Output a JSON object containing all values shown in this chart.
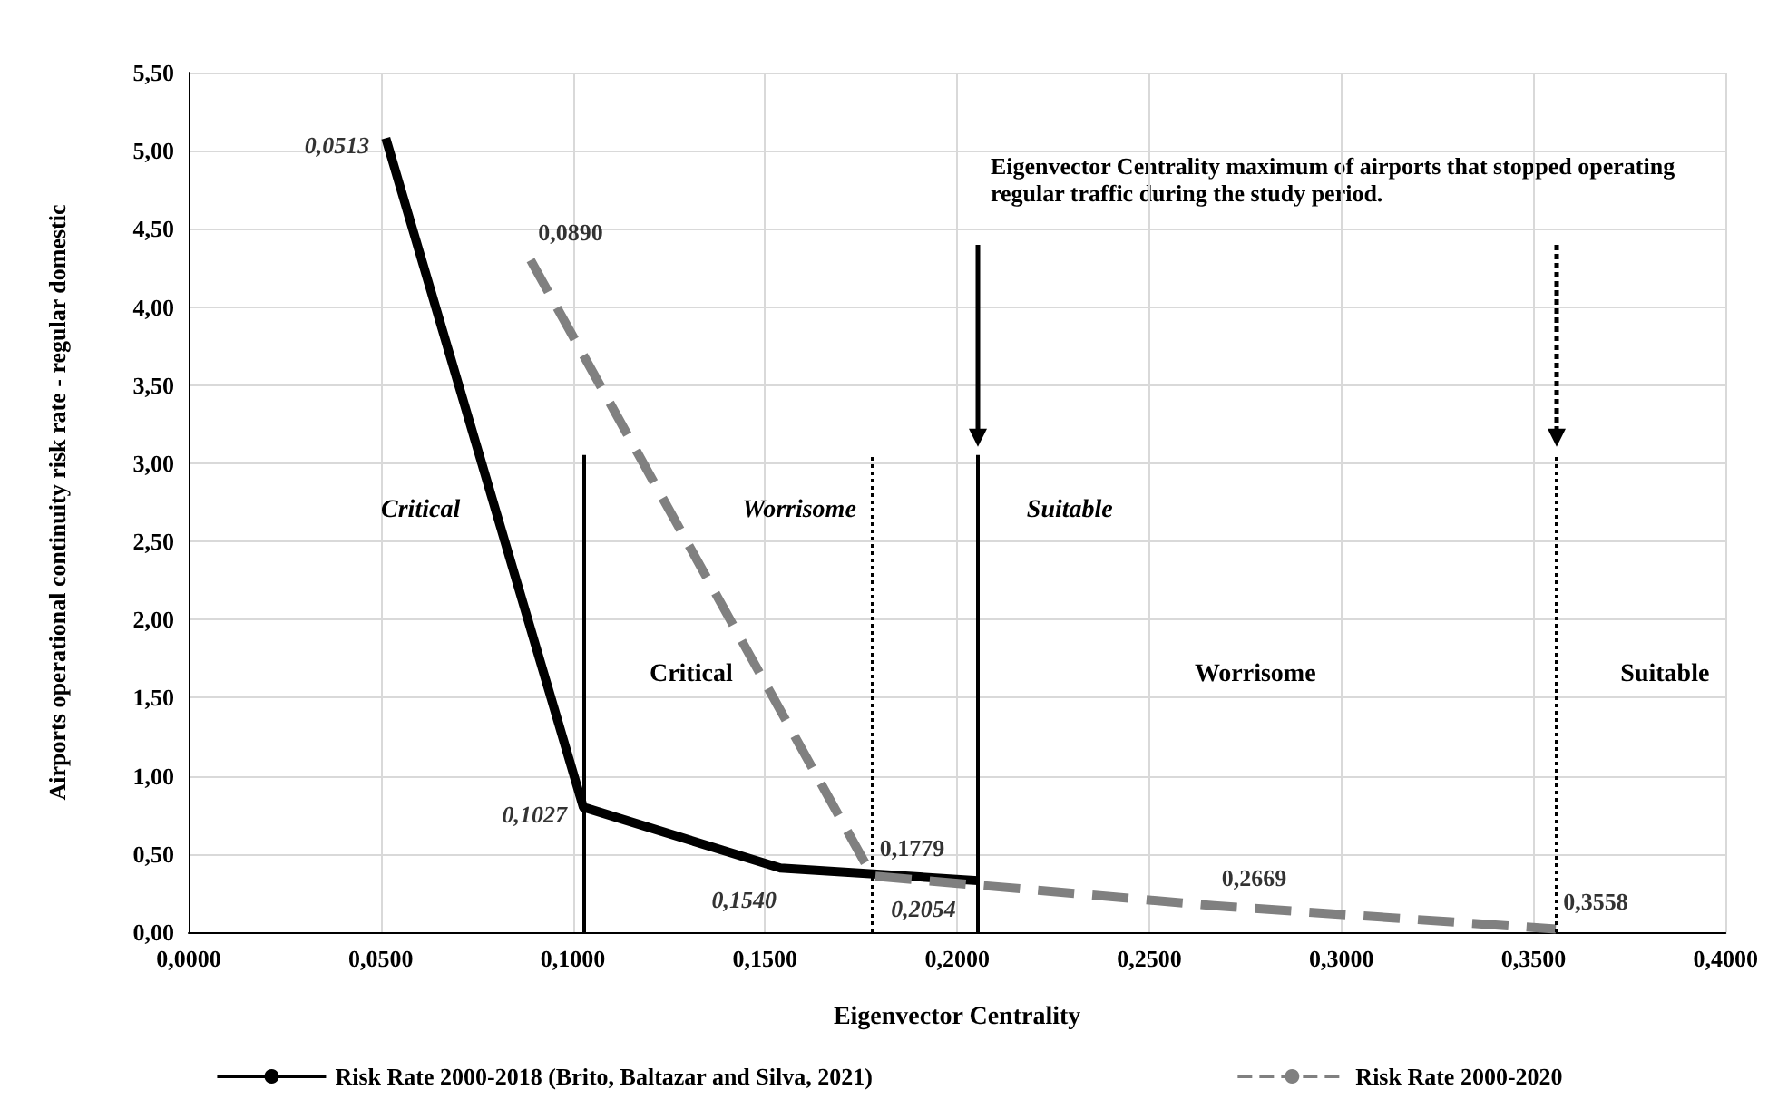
{
  "chart_data": {
    "type": "line",
    "xlabel": "Eigenvector Centrality",
    "ylabel": "Airports operational continuity risk rate - regular domestic",
    "xlim": [
      0,
      0.4
    ],
    "xticks": [
      {
        "value": 0,
        "label": "0,0000"
      },
      {
        "value": 0.05,
        "label": "0,0500"
      },
      {
        "value": 0.1,
        "label": "0,1000"
      },
      {
        "value": 0.15,
        "label": "0,1500"
      },
      {
        "value": 0.2,
        "label": "0,2000"
      },
      {
        "value": 0.25,
        "label": "0,2500"
      },
      {
        "value": 0.3,
        "label": "0,3000"
      },
      {
        "value": 0.35,
        "label": "0,3500"
      },
      {
        "value": 0.4,
        "label": "0,4000"
      }
    ],
    "ylim": [
      0,
      5.5
    ],
    "yticks": [
      {
        "value": 0,
        "label": "0,00"
      },
      {
        "value": 0.5,
        "label": "0,50"
      },
      {
        "value": 1,
        "label": "1,00"
      },
      {
        "value": 1.5,
        "label": "1,50"
      },
      {
        "value": 2,
        "label": "2,00"
      },
      {
        "value": 2.5,
        "label": "2,50"
      },
      {
        "value": 3,
        "label": "3,00"
      },
      {
        "value": 3.5,
        "label": "3,50"
      },
      {
        "value": 4,
        "label": "4,00"
      },
      {
        "value": 4.5,
        "label": "4,50"
      },
      {
        "value": 5,
        "label": "5,00"
      },
      {
        "value": 5.5,
        "label": "5,50"
      }
    ],
    "grid": true,
    "legend": "bottom",
    "marker": "none",
    "series": [
      {
        "name": "Risk Rate 2000-2018 (Brito, Baltazar and Silva, 2021)",
        "color": "#000000",
        "line_style": "solid",
        "x": [
          0.0513,
          0.1027,
          0.154,
          0.2054
        ],
        "values": [
          5.08,
          0.8,
          0.41,
          0.33
        ]
      },
      {
        "name": "Risk Rate 2000-2020",
        "color": "#808080",
        "line_style": "dashed",
        "x": [
          0.089,
          0.1779,
          0.2669,
          0.3558
        ],
        "values": [
          4.3,
          0.36,
          0.17,
          0.02
        ]
      }
    ],
    "ref_lines": [
      {
        "axis": "x",
        "value": 0.1027,
        "color": "#000000",
        "line_style": "solid"
      },
      {
        "axis": "x",
        "value": 0.2054,
        "color": "#000000",
        "line_style": "solid"
      },
      {
        "axis": "x",
        "value": 0.1779,
        "color": "#000000",
        "line_style": "dotted"
      },
      {
        "axis": "x",
        "value": 0.3558,
        "color": "#000000",
        "line_style": "dotted"
      }
    ],
    "annotations": [
      "Eigenvector Centrality maximum of airports that stopped operating regular traffic during the study period.",
      "Critical",
      "Worrisome",
      "Suitable",
      "Critical",
      "Worrisome",
      "Suitable",
      {
        "text": "0,0513",
        "x": 0.0513,
        "y": 5.08
      },
      {
        "text": "0,1027",
        "x": 0.1027,
        "y": 0.8
      },
      {
        "text": "0,1540",
        "x": 0.154,
        "y": 0.41
      },
      {
        "text": "0,2054",
        "x": 0.2054,
        "y": 0.33
      },
      {
        "text": "0,0890",
        "x": 0.089,
        "y": 4.3
      },
      {
        "text": "0,1779",
        "x": 0.1779,
        "y": 0.36
      },
      {
        "text": "0,2669",
        "x": 0.2669,
        "y": 0.17
      },
      {
        "text": "0,3558",
        "x": 0.3558,
        "y": 0.02
      }
    ]
  }
}
